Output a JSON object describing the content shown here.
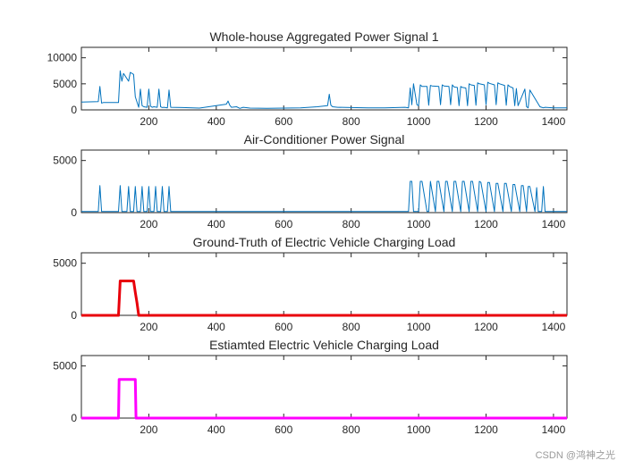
{
  "chart_data": [
    {
      "type": "line",
      "title": "Whole-house Aggregated Power Signal 1",
      "color": "#0072BD",
      "xlim": [
        0,
        1440
      ],
      "ylim": [
        0,
        12000
      ],
      "xticks": [
        200,
        400,
        600,
        800,
        1000,
        1200,
        1400
      ],
      "yticks": [
        0,
        5000,
        10000
      ],
      "x": [
        0,
        50,
        55,
        60,
        65,
        110,
        115,
        120,
        125,
        140,
        145,
        155,
        160,
        170,
        175,
        180,
        185,
        195,
        200,
        205,
        210,
        215,
        225,
        230,
        235,
        240,
        245,
        255,
        260,
        265,
        300,
        350,
        400,
        430,
        435,
        440,
        445,
        460,
        470,
        480,
        500,
        550,
        600,
        650,
        700,
        730,
        735,
        740,
        745,
        760,
        800,
        850,
        900,
        960,
        970,
        975,
        980,
        985,
        995,
        1000,
        1005,
        1010,
        1025,
        1030,
        1035,
        1040,
        1060,
        1065,
        1070,
        1075,
        1090,
        1095,
        1100,
        1105,
        1115,
        1120,
        1125,
        1130,
        1140,
        1145,
        1150,
        1155,
        1165,
        1170,
        1175,
        1180,
        1195,
        1200,
        1205,
        1210,
        1225,
        1230,
        1235,
        1240,
        1255,
        1260,
        1265,
        1270,
        1280,
        1285,
        1290,
        1295,
        1315,
        1320,
        1325,
        1330,
        1360,
        1365,
        1370,
        1375,
        1400,
        1440
      ],
      "y": [
        1500,
        1600,
        4500,
        1300,
        1400,
        1400,
        7500,
        5500,
        7000,
        5500,
        7200,
        6800,
        2500,
        500,
        4000,
        800,
        600,
        500,
        4000,
        700,
        500,
        600,
        500,
        4000,
        600,
        450,
        500,
        400,
        3800,
        500,
        450,
        350,
        800,
        1100,
        1700,
        900,
        500,
        600,
        300,
        500,
        350,
        300,
        350,
        400,
        600,
        800,
        3000,
        900,
        600,
        500,
        450,
        400,
        400,
        500,
        400,
        4200,
        1000,
        5000,
        1000,
        800,
        4800,
        4500,
        4500,
        900,
        4700,
        4600,
        4500,
        1000,
        4800,
        4600,
        4500,
        1000,
        4800,
        4400,
        4300,
        800,
        4500,
        4300,
        4200,
        800,
        5000,
        4800,
        4700,
        900,
        5200,
        5000,
        4800,
        1000,
        5300,
        5100,
        4800,
        1000,
        5200,
        5000,
        4700,
        900,
        4800,
        4500,
        4200,
        800,
        4100,
        800,
        4000,
        600,
        400,
        3800,
        600,
        500,
        400,
        500,
        400,
        400
      ]
    },
    {
      "type": "line",
      "title": "Air-Conditioner Power Signal",
      "color": "#0072BD",
      "xlim": [
        0,
        1440
      ],
      "ylim": [
        0,
        6000
      ],
      "xticks": [
        200,
        400,
        600,
        800,
        1000,
        1200,
        1400
      ],
      "yticks": [
        0,
        5000
      ],
      "x": [
        0,
        50,
        55,
        60,
        65,
        110,
        115,
        120,
        125,
        135,
        140,
        145,
        155,
        160,
        165,
        175,
        180,
        185,
        195,
        200,
        205,
        215,
        220,
        225,
        235,
        240,
        245,
        255,
        260,
        265,
        300,
        400,
        500,
        600,
        700,
        800,
        900,
        970,
        975,
        980,
        985,
        1000,
        1005,
        1010,
        1025,
        1030,
        1035,
        1050,
        1055,
        1060,
        1075,
        1080,
        1085,
        1100,
        1105,
        1110,
        1125,
        1130,
        1135,
        1150,
        1155,
        1160,
        1175,
        1180,
        1185,
        1200,
        1205,
        1210,
        1225,
        1230,
        1235,
        1250,
        1255,
        1260,
        1275,
        1280,
        1285,
        1300,
        1305,
        1310,
        1320,
        1325,
        1330,
        1345,
        1350,
        1355,
        1365,
        1370,
        1375,
        1440
      ],
      "y": [
        100,
        100,
        2600,
        100,
        100,
        100,
        2600,
        100,
        100,
        100,
        2500,
        100,
        100,
        2500,
        100,
        100,
        2500,
        100,
        100,
        2500,
        100,
        100,
        2500,
        100,
        100,
        2500,
        100,
        100,
        2500,
        100,
        100,
        100,
        100,
        100,
        100,
        100,
        100,
        100,
        3000,
        3000,
        100,
        100,
        3000,
        3000,
        100,
        100,
        3000,
        100,
        3000,
        3000,
        100,
        3000,
        3000,
        100,
        3000,
        3000,
        100,
        3000,
        3000,
        100,
        3000,
        3000,
        100,
        3000,
        2900,
        100,
        2900,
        2900,
        100,
        2800,
        2800,
        100,
        2800,
        2800,
        100,
        2700,
        2700,
        100,
        2600,
        2600,
        100,
        2500,
        2500,
        100,
        2400,
        100,
        100,
        2500,
        100,
        100
      ]
    },
    {
      "type": "line",
      "title": "Ground-Truth of Electric Vehicle Charging Load",
      "color": "#e8000b",
      "line_weight": "thick",
      "xlim": [
        0,
        1440
      ],
      "ylim": [
        0,
        6000
      ],
      "xticks": [
        200,
        400,
        600,
        800,
        1000,
        1200,
        1400
      ],
      "yticks": [
        0,
        5000
      ],
      "x": [
        0,
        110,
        115,
        155,
        160,
        165,
        170,
        1440
      ],
      "y": [
        0,
        0,
        3300,
        3300,
        2200,
        1200,
        0,
        0
      ]
    },
    {
      "type": "line",
      "title": "Estiamted Electric Vehicle Charging Load",
      "color": "#ff00ff",
      "line_weight": "thick",
      "xlim": [
        0,
        1440
      ],
      "ylim": [
        0,
        6000
      ],
      "xticks": [
        200,
        400,
        600,
        800,
        1000,
        1200,
        1400
      ],
      "yticks": [
        0,
        5000
      ],
      "x": [
        0,
        110,
        112,
        160,
        162,
        1440
      ],
      "y": [
        0,
        0,
        3700,
        3700,
        0,
        0
      ]
    }
  ],
  "watermark": "CSDN @鸿神之光"
}
